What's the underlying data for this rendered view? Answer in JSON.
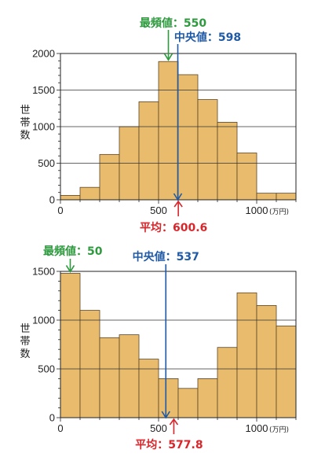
{
  "colors": {
    "bar_fill": "#e8bc6c",
    "bar_stroke": "#5a4428",
    "mode": "#2e9a3e",
    "median": "#1f5aa6",
    "mean": "#d8262b",
    "grid": "#333333"
  },
  "chart_data": [
    {
      "type": "bar",
      "x": [
        0,
        100,
        200,
        300,
        400,
        500,
        600,
        700,
        800,
        900,
        1000,
        1100
      ],
      "bin_width": 100,
      "values": [
        60,
        170,
        620,
        1000,
        1340,
        1890,
        1710,
        1370,
        1060,
        640,
        90,
        90
      ],
      "xlim": [
        0,
        1200
      ],
      "ylim": [
        0,
        2000
      ],
      "yticks": [
        "0",
        "500",
        "1000",
        "1500",
        "2000"
      ],
      "xticks": [
        "0",
        "500",
        "1000"
      ],
      "xunit": "(万円)",
      "ylabel": "世帯数",
      "grid": true,
      "annotations": {
        "mode": {
          "label": "最頻値：550",
          "value": 550
        },
        "median": {
          "label": "中央値：598",
          "value": 598
        },
        "mean": {
          "label": "平均：600.6",
          "value": 600.6
        }
      }
    },
    {
      "type": "bar",
      "x": [
        0,
        100,
        200,
        300,
        400,
        500,
        600,
        700,
        800,
        900,
        1000,
        1100
      ],
      "bin_width": 100,
      "values": [
        1480,
        1100,
        820,
        850,
        600,
        400,
        300,
        400,
        720,
        1280,
        1150,
        940
      ],
      "xlim": [
        0,
        1200
      ],
      "ylim": [
        0,
        1500
      ],
      "yticks": [
        "0",
        "500",
        "1000",
        "1500"
      ],
      "xticks": [
        "0",
        "500",
        "1000"
      ],
      "xunit": "(万円)",
      "ylabel": "世帯数",
      "grid": true,
      "annotations": {
        "mode": {
          "label": "最頻値：50",
          "value": 50
        },
        "median": {
          "label": "中央値：537",
          "value": 537
        },
        "mean": {
          "label": "平均：577.8",
          "value": 577.8
        }
      }
    }
  ]
}
